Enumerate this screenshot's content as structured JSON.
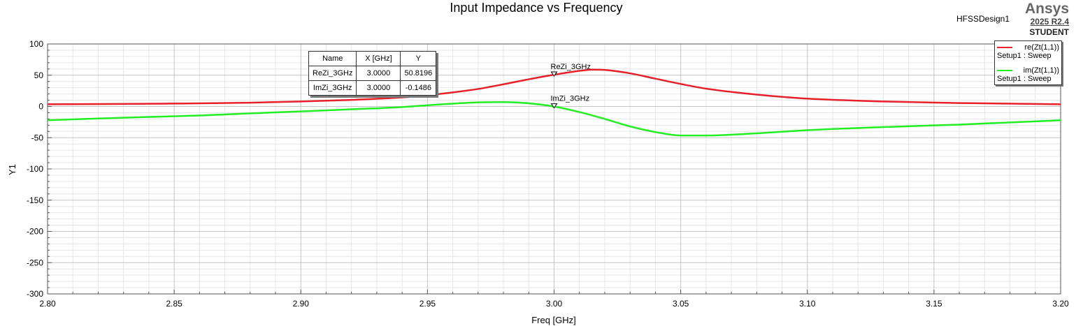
{
  "chart_data": {
    "type": "line",
    "title": "Input Impedance vs Frequency",
    "xlabel": "Freq [GHz]",
    "ylabel": "Y1",
    "xlim": [
      2.8,
      3.2
    ],
    "ylim": [
      -300,
      100
    ],
    "x_ticks": [
      "2.80",
      "2.85",
      "2.90",
      "2.95",
      "3.00",
      "3.05",
      "3.10",
      "3.15",
      "3.20"
    ],
    "y_ticks": [
      "100",
      "50",
      "0",
      "-50",
      "-100",
      "-150",
      "-200",
      "-250",
      "-300"
    ],
    "grid": true,
    "legend_position": "top-right",
    "series": [
      {
        "name": "re(Zt(1,1))",
        "setup": "Setup1 : Sweep",
        "color": "#e8202a",
        "x": [
          2.8,
          2.83,
          2.86,
          2.88,
          2.9,
          2.92,
          2.94,
          2.95,
          2.96,
          2.97,
          2.98,
          2.99,
          3.0,
          3.01,
          3.015,
          3.02,
          3.03,
          3.04,
          3.05,
          3.06,
          3.08,
          3.1,
          3.13,
          3.16,
          3.2
        ],
        "y": [
          3.5,
          4.0,
          5.0,
          6.0,
          8.0,
          10.5,
          14.5,
          18.0,
          22.5,
          28.0,
          35.5,
          43.5,
          50.8,
          57.0,
          59.0,
          58.5,
          53.0,
          44.5,
          36.0,
          28.5,
          19.0,
          12.5,
          8.0,
          5.5,
          3.5
        ]
      },
      {
        "name": "im(Zt(1,1))",
        "setup": "Setup1 : Sweep",
        "color": "#22ee22",
        "x": [
          2.8,
          2.83,
          2.86,
          2.88,
          2.9,
          2.92,
          2.94,
          2.95,
          2.96,
          2.97,
          2.98,
          2.99,
          3.0,
          3.01,
          3.02,
          3.03,
          3.04,
          3.05,
          3.06,
          3.08,
          3.1,
          3.13,
          3.16,
          3.2
        ],
        "y": [
          -22.0,
          -18.0,
          -14.5,
          -11.0,
          -8.0,
          -4.5,
          -1.0,
          2.0,
          4.5,
          6.5,
          7.0,
          5.0,
          -0.15,
          -9.0,
          -20.0,
          -32.0,
          -41.0,
          -46.5,
          -46.5,
          -43.0,
          -38.0,
          -33.0,
          -29.0,
          -22.0
        ]
      }
    ],
    "markers": [
      {
        "name": "ReZi_3GHz",
        "x": "3.0000",
        "y": "50.8196",
        "x_val": 3.0,
        "y_val": 50.8196
      },
      {
        "name": "ImZi_3GHz",
        "x": "3.0000",
        "y": "-0.1486",
        "x_val": 3.0,
        "y_val": -0.1486
      }
    ],
    "marker_table_headers": [
      "Name",
      "X [GHz]",
      "Y"
    ]
  },
  "header": {
    "design": "HFSSDesign1",
    "brand": "Ansys",
    "version": "2025 R2.4",
    "edition": "STUDENT"
  }
}
